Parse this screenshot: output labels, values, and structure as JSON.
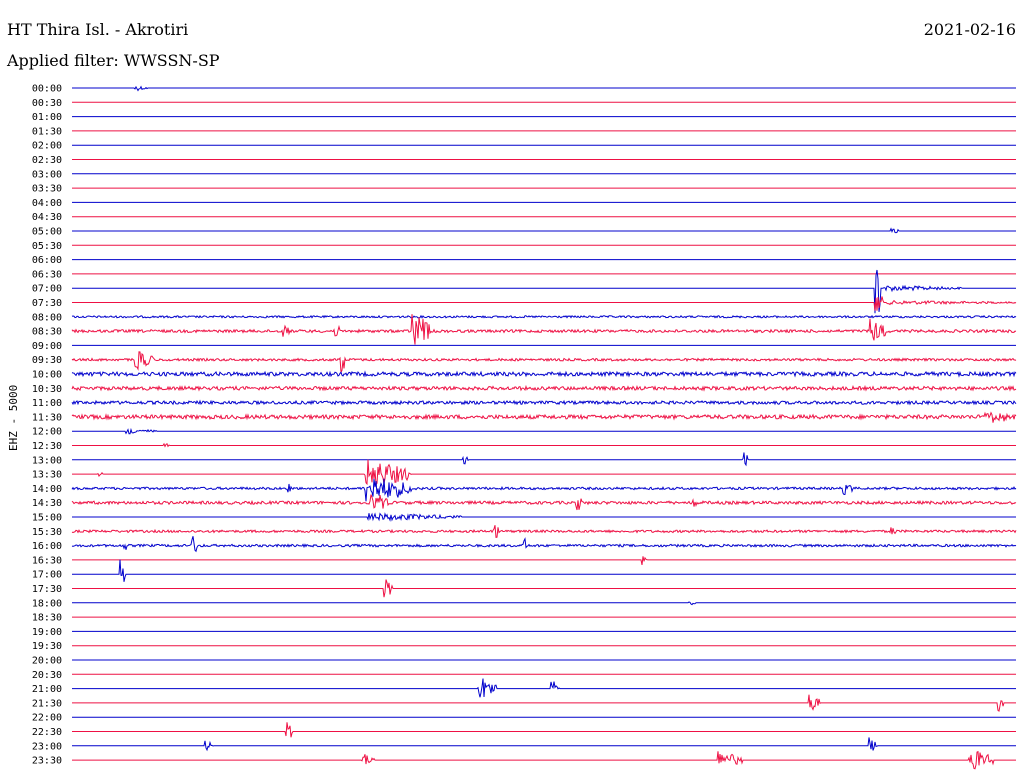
{
  "header": {
    "station": "HT Thira Isl. - Akrotiri",
    "filter": "Applied filter: WWSSN-SP",
    "date": "2021-02-16"
  },
  "chart_data": {
    "type": "line",
    "title": "HT Thira Isl. - Akrotiri",
    "subtitle": "Applied filter: WWSSN-SP",
    "date": "2021-02-16",
    "ylabel": "EHZ - 5000",
    "xlabel": "",
    "grid": false,
    "colors": {
      "even": "#0000cc",
      "odd": "#ee1144"
    },
    "row_labels": [
      "00:00",
      "00:30",
      "01:00",
      "01:30",
      "02:00",
      "02:30",
      "03:00",
      "03:30",
      "04:00",
      "04:30",
      "05:00",
      "05:30",
      "06:00",
      "06:30",
      "07:00",
      "07:30",
      "08:00",
      "08:30",
      "09:00",
      "09:30",
      "10:00",
      "10:30",
      "11:00",
      "11:30",
      "12:00",
      "12:30",
      "13:00",
      "13:30",
      "14:00",
      "14:30",
      "15:00",
      "15:30",
      "16:00",
      "16:30",
      "17:00",
      "17:30",
      "18:00",
      "18:30",
      "19:00",
      "19:30",
      "20:00",
      "20:30",
      "21:00",
      "21:30",
      "22:00",
      "22:30",
      "23:00",
      "23:30"
    ],
    "traces": [
      {
        "noise": 0,
        "bursts": [
          [
            2,
            0.4,
            3
          ]
        ]
      },
      {
        "noise": 0,
        "bursts": []
      },
      {
        "noise": 0,
        "bursts": []
      },
      {
        "noise": 0,
        "bursts": []
      },
      {
        "noise": 0,
        "bursts": []
      },
      {
        "noise": 0,
        "bursts": []
      },
      {
        "noise": 0,
        "bursts": []
      },
      {
        "noise": 0,
        "bursts": []
      },
      {
        "noise": 0,
        "bursts": []
      },
      {
        "noise": 0,
        "bursts": []
      },
      {
        "noise": 0,
        "bursts": [
          [
            26,
            0.3,
            4
          ]
        ]
      },
      {
        "noise": 0,
        "bursts": []
      },
      {
        "noise": 0,
        "bursts": []
      },
      {
        "noise": 0,
        "bursts": []
      },
      {
        "noise": 0,
        "bursts": [
          [
            25.5,
            0.2,
            58
          ],
          [
            25.8,
            2.5,
            3
          ]
        ]
      },
      {
        "noise": 0,
        "bursts": [
          [
            25.5,
            0.3,
            14
          ],
          [
            25.9,
            4.6,
            2
          ]
        ]
      },
      {
        "noise": 1,
        "bursts": []
      },
      {
        "noise": 1.4,
        "bursts": [
          [
            6.7,
            0.2,
            10
          ],
          [
            8.3,
            0.2,
            9
          ],
          [
            10.8,
            0.6,
            22
          ],
          [
            25.3,
            0.6,
            15
          ]
        ]
      },
      {
        "noise": 0,
        "bursts": []
      },
      {
        "noise": 1.2,
        "bursts": [
          [
            2,
            0.6,
            12
          ],
          [
            8.5,
            0.2,
            20
          ]
        ]
      },
      {
        "noise": 2,
        "bursts": []
      },
      {
        "noise": 1.8,
        "bursts": []
      },
      {
        "noise": 1.6,
        "bursts": []
      },
      {
        "noise": 2,
        "bursts": [
          [
            15.5,
            0,
            0
          ],
          [
            29,
            1,
            6
          ]
        ]
      },
      {
        "noise": 0,
        "bursts": [
          [
            1.7,
            1,
            3
          ]
        ]
      },
      {
        "noise": 0,
        "bursts": [
          [
            2.9,
            0.2,
            3
          ]
        ]
      },
      {
        "noise": 0,
        "bursts": [
          [
            12.4,
            0.2,
            6
          ],
          [
            21.3,
            0.2,
            10
          ]
        ]
      },
      {
        "noise": 0,
        "bursts": [
          [
            0.8,
            0.2,
            3
          ],
          [
            9.3,
            1.5,
            16
          ]
        ]
      },
      {
        "noise": 1.2,
        "bursts": [
          [
            6.8,
            0.2,
            10
          ],
          [
            9.3,
            1.5,
            16
          ],
          [
            24.5,
            0.3,
            6
          ]
        ]
      },
      {
        "noise": 1.5,
        "bursts": [
          [
            9.5,
            0.6,
            10
          ],
          [
            16,
            0.2,
            12
          ],
          [
            19.7,
            0.2,
            8
          ]
        ]
      },
      {
        "noise": 0,
        "bursts": [
          [
            9.4,
            3,
            4
          ]
        ]
      },
      {
        "noise": 1.2,
        "bursts": [
          [
            13.4,
            0.2,
            10
          ],
          [
            26,
            0.2,
            6
          ]
        ]
      },
      {
        "noise": 1.2,
        "bursts": [
          [
            1.6,
            0.2,
            8
          ],
          [
            3.8,
            0.2,
            14
          ],
          [
            14.3,
            0.2,
            10
          ]
        ]
      },
      {
        "noise": 0,
        "bursts": [
          [
            18.1,
            0.2,
            6
          ]
        ]
      },
      {
        "noise": 0,
        "bursts": [
          [
            1.5,
            0.2,
            18
          ]
        ]
      },
      {
        "noise": 0,
        "bursts": [
          [
            9.9,
            0.3,
            12
          ]
        ]
      },
      {
        "noise": 0,
        "bursts": [
          [
            19.6,
            0.2,
            4
          ]
        ]
      },
      {
        "noise": 0,
        "bursts": []
      },
      {
        "noise": 0,
        "bursts": []
      },
      {
        "noise": 0,
        "bursts": []
      },
      {
        "noise": 0,
        "bursts": []
      },
      {
        "noise": 0,
        "bursts": []
      },
      {
        "noise": 0,
        "bursts": [
          [
            12.9,
            0.6,
            14
          ],
          [
            15.2,
            0.3,
            10
          ]
        ]
      },
      {
        "noise": 0,
        "bursts": [
          [
            23.4,
            0.4,
            10
          ],
          [
            29.4,
            0.2,
            12
          ]
        ]
      },
      {
        "noise": 0,
        "bursts": []
      },
      {
        "noise": 0,
        "bursts": [
          [
            6.8,
            0.2,
            18
          ]
        ]
      },
      {
        "noise": 0,
        "bursts": [
          [
            4.2,
            0.3,
            6
          ],
          [
            25.3,
            0.3,
            10
          ]
        ]
      },
      {
        "noise": 0,
        "bursts": [
          [
            9.2,
            0.4,
            8
          ],
          [
            20.5,
            0.8,
            10
          ],
          [
            28.5,
            0.8,
            12
          ]
        ]
      }
    ]
  }
}
